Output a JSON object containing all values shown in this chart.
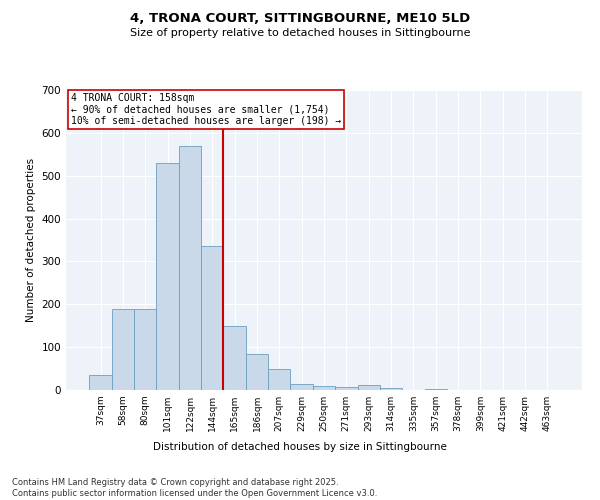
{
  "title_line1": "4, TRONA COURT, SITTINGBOURNE, ME10 5LD",
  "title_line2": "Size of property relative to detached houses in Sittingbourne",
  "xlabel": "Distribution of detached houses by size in Sittingbourne",
  "ylabel": "Number of detached properties",
  "categories": [
    "37sqm",
    "58sqm",
    "80sqm",
    "101sqm",
    "122sqm",
    "144sqm",
    "165sqm",
    "186sqm",
    "207sqm",
    "229sqm",
    "250sqm",
    "271sqm",
    "293sqm",
    "314sqm",
    "335sqm",
    "357sqm",
    "378sqm",
    "399sqm",
    "421sqm",
    "442sqm",
    "463sqm"
  ],
  "values": [
    35,
    190,
    190,
    530,
    570,
    335,
    150,
    85,
    50,
    15,
    10,
    7,
    12,
    5,
    0,
    2,
    0,
    0,
    0,
    0,
    0
  ],
  "bar_color": "#cad9ea",
  "bar_edge_color": "#6a9fc0",
  "vline_color": "#cc0000",
  "annotation_text": "4 TRONA COURT: 158sqm\n← 90% of detached houses are smaller (1,754)\n10% of semi-detached houses are larger (198) →",
  "annotation_box_color": "#cc0000",
  "ylim": [
    0,
    700
  ],
  "yticks": [
    0,
    100,
    200,
    300,
    400,
    500,
    600,
    700
  ],
  "background_color": "#eef2f9",
  "footer_line1": "Contains HM Land Registry data © Crown copyright and database right 2025.",
  "footer_line2": "Contains public sector information licensed under the Open Government Licence v3.0."
}
